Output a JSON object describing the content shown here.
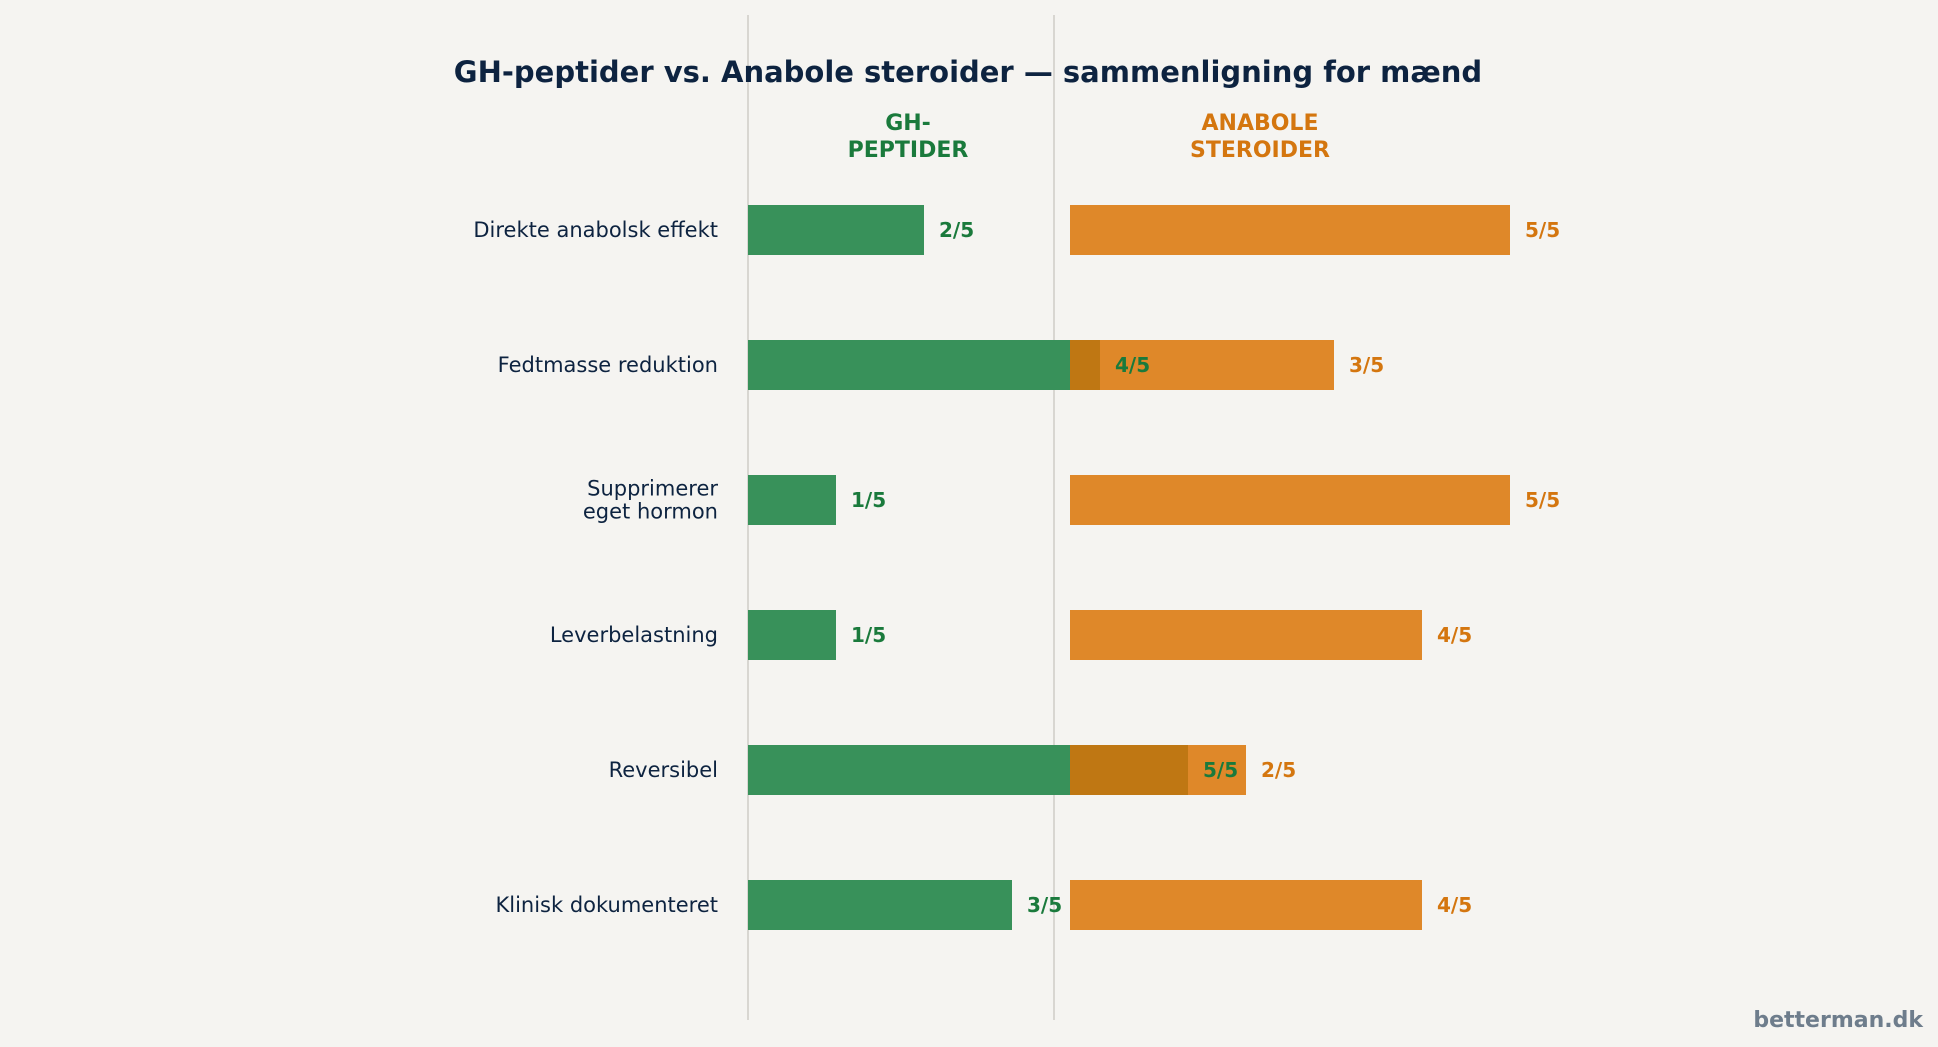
{
  "colors": {
    "background": "#f5f4f1",
    "title": "#0d2340",
    "label": "#0d2340",
    "gh_bar": "#38915a",
    "gh_text": "#1a7a3c",
    "steroid_bar": "#df8829",
    "steroid_text": "#d4760f",
    "overlap": "#bf7713",
    "divider": "#d8d6d1",
    "watermark": "#6e7d8c"
  },
  "chart_data": {
    "type": "bar",
    "title": "GH-peptider vs. Anabole steroider — sammenligning for mænd",
    "max_score": 5,
    "columns": {
      "gh": [
        "GH-",
        "PEPTIDER"
      ],
      "steroid": [
        "ANABOLE",
        "STEROIDER"
      ]
    },
    "categories": [
      [
        "Direkte anabolsk effekt"
      ],
      [
        "Fedtmasse reduktion"
      ],
      [
        "Supprimerer",
        "eget hormon"
      ],
      [
        "Leverbelastning"
      ],
      [
        "Reversibel"
      ],
      [
        "Klinisk dokumenteret"
      ]
    ],
    "series": [
      {
        "key": "gh",
        "values": [
          2,
          4,
          1,
          1,
          5,
          3
        ],
        "labels": [
          "2/5",
          "4/5",
          "1/5",
          "1/5",
          "5/5",
          "3/5"
        ]
      },
      {
        "key": "steroid",
        "values": [
          5,
          3,
          5,
          4,
          2,
          4
        ],
        "labels": [
          "5/5",
          "3/5",
          "5/5",
          "4/5",
          "2/5",
          "4/5"
        ]
      }
    ]
  },
  "watermark": "betterman.dk"
}
